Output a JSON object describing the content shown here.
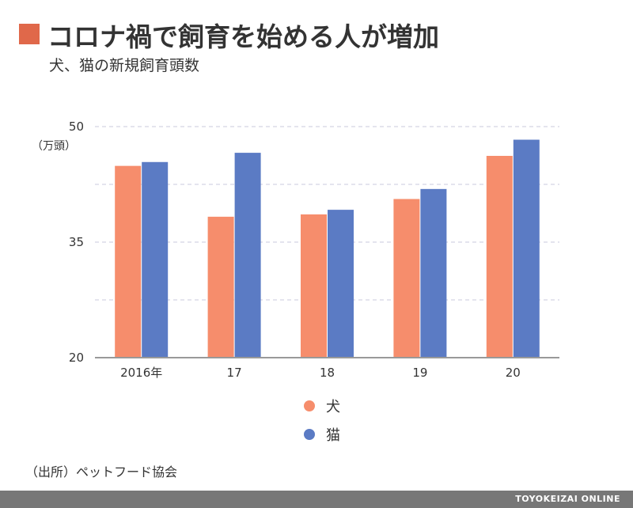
{
  "header": {
    "title": "コロナ禍で飼育を始める人が増加",
    "subtitle": "犬、猫の新規飼育頭数"
  },
  "source": "（出所）ペットフード協会",
  "footer": {
    "brand": "TOYOKEIZAI ONLINE"
  },
  "colors": {
    "accent": "#e0684a",
    "dog": "#f68d6c",
    "cat": "#5b7bc4",
    "grid": "#c8c8dc",
    "axis": "#999999",
    "footer": "#777777"
  },
  "chart_data": {
    "type": "bar",
    "categories": [
      "2016年",
      "17",
      "18",
      "19",
      "20"
    ],
    "series": [
      {
        "name": "犬",
        "values": [
          44.9,
          38.3,
          38.6,
          40.6,
          46.2
        ]
      },
      {
        "name": "猫",
        "values": [
          45.4,
          46.6,
          39.2,
          41.9,
          48.3
        ]
      }
    ],
    "ylim": [
      20,
      50
    ],
    "yticks": [
      20,
      35,
      50
    ],
    "ytick_labels": [
      "20",
      "35",
      "50"
    ],
    "yunit_label": "（万頭）",
    "grid": true,
    "legend_position": "bottom-center"
  }
}
